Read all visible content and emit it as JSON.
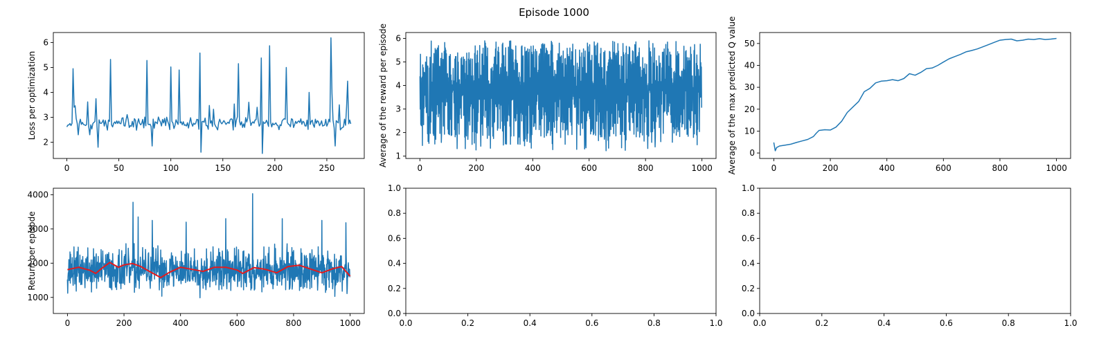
{
  "figure": {
    "suptitle": "Episode 1000"
  },
  "colors": {
    "line": "#1f77b4",
    "moving_average": "#e41a1c",
    "axes": "#000000",
    "background": "#ffffff"
  },
  "chart_data": [
    {
      "id": "loss",
      "type": "line",
      "title": "",
      "xlabel": "",
      "ylabel": "Loss per optimization",
      "xlim": [
        -13,
        286
      ],
      "ylim": [
        1.35,
        6.4
      ],
      "xticks": [
        0,
        50,
        100,
        150,
        200,
        250
      ],
      "yticks": [
        2,
        3,
        4,
        5,
        6
      ],
      "grid": false,
      "generator": {
        "n": 274,
        "x_start": 0,
        "x_end": 273,
        "seed": 11,
        "base": 2.75,
        "noise": 0.28,
        "min": 1.8,
        "max": 6.2,
        "spikes": [
          [
            6,
            4.95
          ],
          [
            11,
            2.3
          ],
          [
            22,
            2.3
          ],
          [
            30,
            1.8
          ],
          [
            42,
            5.32
          ],
          [
            77,
            5.28
          ],
          [
            82,
            1.85
          ],
          [
            100,
            5.02
          ],
          [
            108,
            4.9
          ],
          [
            128,
            5.58
          ],
          [
            129,
            1.6
          ],
          [
            165,
            5.15
          ],
          [
            187,
            5.38
          ],
          [
            188,
            1.55
          ],
          [
            195,
            5.87
          ],
          [
            211,
            5.0
          ],
          [
            233,
            4.0
          ],
          [
            254,
            6.19
          ],
          [
            258,
            1.85
          ],
          [
            262,
            3.5
          ],
          [
            270,
            4.45
          ]
        ]
      },
      "series": [
        {
          "name": "",
          "color": "#1f77b4"
        }
      ]
    },
    {
      "id": "avg_reward",
      "type": "line",
      "title": "",
      "xlabel": "",
      "ylabel": "Average of the reward per episode",
      "xlim": [
        -50,
        1050
      ],
      "ylim": [
        0.9,
        6.25
      ],
      "xticks": [
        0,
        200,
        400,
        600,
        800,
        1000
      ],
      "yticks": [
        1,
        2,
        3,
        4,
        5,
        6
      ],
      "grid": false,
      "generator": {
        "n": 1000,
        "x_start": 0,
        "x_end": 999,
        "seed": 23,
        "mode": "oscillate",
        "min": 1.2,
        "max": 6.0
      },
      "series": [
        {
          "name": "",
          "color": "#1f77b4"
        }
      ]
    },
    {
      "id": "max_q",
      "type": "line",
      "title": "",
      "xlabel": "",
      "ylabel": "Average of the max predicted Q value",
      "xlim": [
        -50,
        1050
      ],
      "ylim": [
        -2.5,
        55
      ],
      "xticks": [
        0,
        200,
        400,
        600,
        800,
        1000
      ],
      "yticks": [
        0,
        10,
        20,
        30,
        40,
        50
      ],
      "grid": false,
      "x": [
        0,
        5,
        10,
        20,
        40,
        60,
        80,
        100,
        120,
        140,
        150,
        160,
        180,
        200,
        220,
        240,
        260,
        280,
        300,
        320,
        340,
        360,
        380,
        400,
        420,
        440,
        460,
        480,
        500,
        520,
        540,
        560,
        580,
        600,
        620,
        640,
        660,
        680,
        700,
        720,
        740,
        760,
        780,
        800,
        820,
        840,
        860,
        880,
        900,
        920,
        940,
        960,
        980,
        1000
      ],
      "values": [
        4.8,
        1.0,
        2.5,
        3.2,
        3.6,
        4.0,
        4.8,
        5.5,
        6.2,
        7.5,
        9.0,
        10.3,
        10.6,
        10.5,
        11.8,
        14.5,
        18.5,
        21.0,
        23.5,
        28.0,
        29.5,
        32.0,
        32.8,
        33.0,
        33.5,
        33.0,
        34.0,
        36.2,
        35.5,
        36.8,
        38.5,
        38.8,
        40.0,
        41.5,
        43.0,
        44.0,
        45.0,
        46.2,
        46.8,
        47.5,
        48.5,
        49.5,
        50.5,
        51.5,
        51.8,
        52.0,
        51.2,
        51.5,
        52.0,
        51.8,
        52.2,
        51.8,
        52.0,
        52.3
      ],
      "series": [
        {
          "name": "",
          "color": "#1f77b4"
        }
      ]
    },
    {
      "id": "return",
      "type": "line",
      "title": "",
      "xlabel": "",
      "ylabel": "Return per episode",
      "xlim": [
        -50,
        1050
      ],
      "ylim": [
        530,
        4190
      ],
      "xticks": [
        0,
        200,
        400,
        600,
        800,
        1000
      ],
      "yticks": [
        1000,
        2000,
        3000,
        4000
      ],
      "grid": false,
      "generator": {
        "n": 1000,
        "x_start": 0,
        "x_end": 999,
        "seed": 37,
        "mode": "noisy",
        "center": 1800,
        "spread": 520,
        "min": 650,
        "max": 3350,
        "spikes": [
          [
            232,
            3780
          ],
          [
            655,
            4030
          ],
          [
            250,
            3350
          ],
          [
            300,
            3250
          ],
          [
            420,
            3200
          ],
          [
            560,
            3300
          ],
          [
            760,
            3300
          ],
          [
            900,
            3250
          ],
          [
            985,
            3180
          ]
        ]
      },
      "moving_average": {
        "name": "",
        "color": "#e41a1c",
        "x": [
          0,
          40,
          80,
          100,
          120,
          150,
          180,
          200,
          230,
          260,
          290,
          330,
          360,
          400,
          440,
          480,
          520,
          560,
          600,
          620,
          660,
          700,
          740,
          780,
          820,
          860,
          900,
          940,
          970,
          1000
        ],
        "values": [
          1810,
          1880,
          1790,
          1700,
          1840,
          2020,
          1880,
          1950,
          1990,
          1900,
          1760,
          1580,
          1730,
          1880,
          1820,
          1760,
          1880,
          1880,
          1800,
          1700,
          1870,
          1820,
          1720,
          1900,
          1940,
          1830,
          1720,
          1840,
          1900,
          1620
        ]
      },
      "series": [
        {
          "name": "",
          "color": "#1f77b4"
        }
      ]
    },
    {
      "id": "empty_1",
      "type": "line",
      "title": "",
      "xlabel": "",
      "ylabel": "",
      "xlim": [
        0,
        1
      ],
      "ylim": [
        0,
        1
      ],
      "xticks": [
        0.0,
        0.2,
        0.4,
        0.6,
        0.8,
        1.0
      ],
      "yticks": [
        0.0,
        0.2,
        0.4,
        0.6,
        0.8,
        1.0
      ],
      "tick_decimals": 1,
      "grid": false,
      "series": []
    },
    {
      "id": "empty_2",
      "type": "line",
      "title": "",
      "xlabel": "",
      "ylabel": "",
      "xlim": [
        0,
        1
      ],
      "ylim": [
        0,
        1
      ],
      "xticks": [
        0.0,
        0.2,
        0.4,
        0.6,
        0.8,
        1.0
      ],
      "yticks": [
        0.0,
        0.2,
        0.4,
        0.6,
        0.8,
        1.0
      ],
      "tick_decimals": 1,
      "grid": false,
      "series": []
    }
  ]
}
